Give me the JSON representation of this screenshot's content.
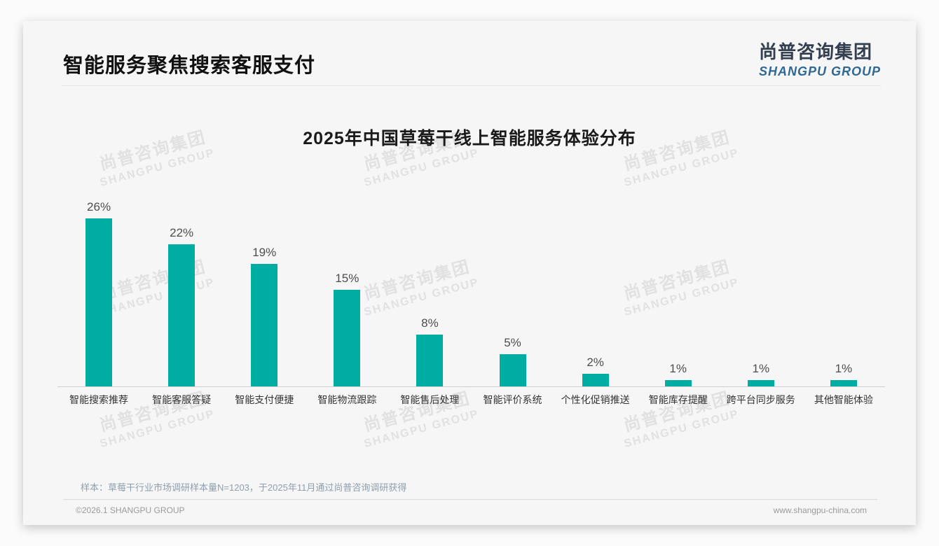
{
  "header": {
    "title": "智能服务聚焦搜索客服支付",
    "logo_cn": "尚普咨询集团",
    "logo_en": "SHANGPU GROUP"
  },
  "chart_data": {
    "type": "bar",
    "title": "2025年中国草莓干线上智能服务体验分布",
    "categories": [
      "智能搜索推荐",
      "智能客服答疑",
      "智能支付便捷",
      "智能物流跟踪",
      "智能售后处理",
      "智能评价系统",
      "个性化促销推送",
      "智能库存提醒",
      "跨平台同步服务",
      "其他智能体验"
    ],
    "values": [
      26,
      22,
      19,
      15,
      8,
      5,
      2,
      1,
      1,
      1
    ],
    "value_labels": [
      "26%",
      "22%",
      "19%",
      "15%",
      "8%",
      "5%",
      "2%",
      "1%",
      "1%",
      "1%"
    ],
    "unit": "%",
    "xlabel": "",
    "ylabel": "",
    "ylim": [
      0,
      30
    ],
    "grid": false,
    "legend": "none",
    "bar_color": "#00ADA2"
  },
  "note": "样本：草莓干行业市场调研样本量N=1203，于2025年11月通过尚普咨询调研获得",
  "footer": {
    "left": "©2026.1 SHANGPU GROUP",
    "right": "www.shangpu-china.com"
  },
  "watermark": {
    "cn": "尚普咨询集团",
    "en": "SHANGPU GROUP"
  },
  "colors": {
    "bar": "#00ADA2",
    "logo_cn": "#333F50",
    "logo_en": "#2F6893",
    "note": "#8E9EAF"
  }
}
